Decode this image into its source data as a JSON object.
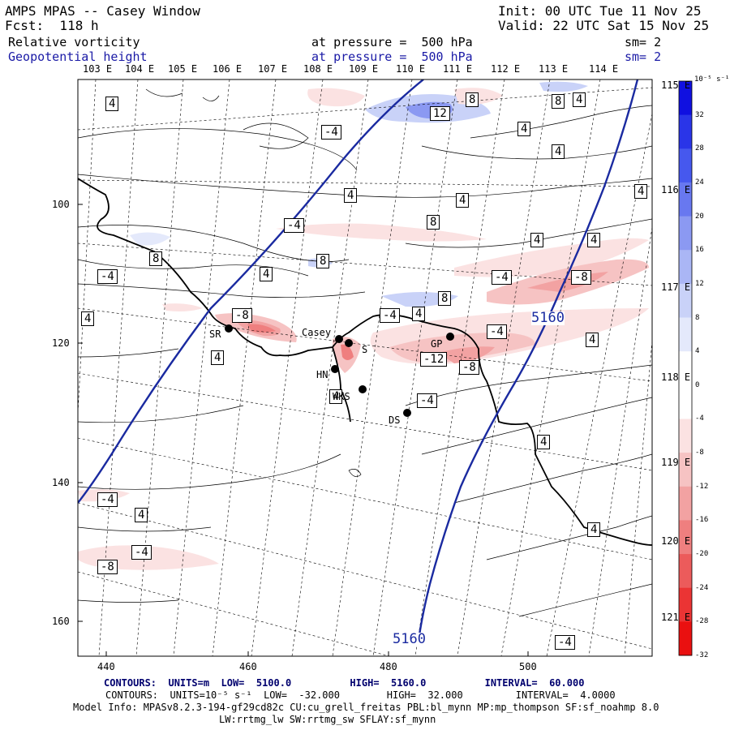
{
  "header": {
    "title": "AMPS MPAS -- Casey Window",
    "forecast": "Fcst:  118 h",
    "init": "Init: 00 UTC Tue 11 Nov 25",
    "valid": "Valid: 22 UTC Sat 15 Nov 25"
  },
  "fields": [
    {
      "name": "Relative vorticity",
      "level": "at pressure =  500 hPa",
      "sm": "sm= 2"
    },
    {
      "name": "Geopotential height",
      "level": "at pressure =  500 hPa",
      "sm": "sm= 2"
    }
  ],
  "lon_labels_top": [
    "103 E",
    "104 E",
    "105 E",
    "106 E",
    "107 E",
    "108 E",
    "109 E",
    "110 E",
    "111 E",
    "112 E",
    "113 E",
    "114 E"
  ],
  "lon_labels_right": [
    "115 E",
    "116 E",
    "117 E",
    "118 E",
    "119 E",
    "120 E",
    "121 E"
  ],
  "x_ticks": [
    "440",
    "460",
    "480",
    "500"
  ],
  "y_ticks": [
    "100",
    "120",
    "140",
    "160"
  ],
  "colorbar": {
    "unit_label": "10⁻⁵ s⁻¹",
    "labels": [
      "32",
      "28",
      "24",
      "20",
      "16",
      "12",
      "8",
      "4",
      "0",
      "-4",
      "-8",
      "-12",
      "-16",
      "-20",
      "-24",
      "-28",
      "-32"
    ],
    "colors": [
      "#1010e0",
      "#2a35e8",
      "#4658ee",
      "#6878f0",
      "#8b99f2",
      "#aab6f5",
      "#c9d2f8",
      "#e4e9fb",
      "#ffffff",
      "#ffffff",
      "#fbe2e2",
      "#f6c3c3",
      "#f2a2a2",
      "#ef7f7f",
      "#ec5b5b",
      "#eb3434",
      "#ea1010"
    ]
  },
  "stations": [
    "SR",
    "Casey",
    "S",
    "HN",
    "WKS",
    "DS",
    "GP"
  ],
  "height_contour_labels": [
    "5160",
    "5160"
  ],
  "vort_labels": [
    "4",
    "-4",
    "8",
    "-8",
    "12",
    "-12"
  ],
  "footer": {
    "height_contours": "CONTOURS:  UNITS=m  LOW=  5100.0          HIGH=  5160.0          INTERVAL=  60.000",
    "vort_contours": "CONTOURS:  UNITS=10⁻⁵ s⁻¹  LOW=  -32.000        HIGH=  32.000         INTERVAL=  4.0000",
    "model_info": "Model Info: MPASv8.2.3-194-gf29cd82c CU:cu_grell_freitas PBL:bl_mynn MP:mp_thompson SF:sf_noahmp 8.0",
    "model_info2": "LW:rrtmg_lw SW:rrtmg_sw SFLAY:sf_mynn"
  }
}
